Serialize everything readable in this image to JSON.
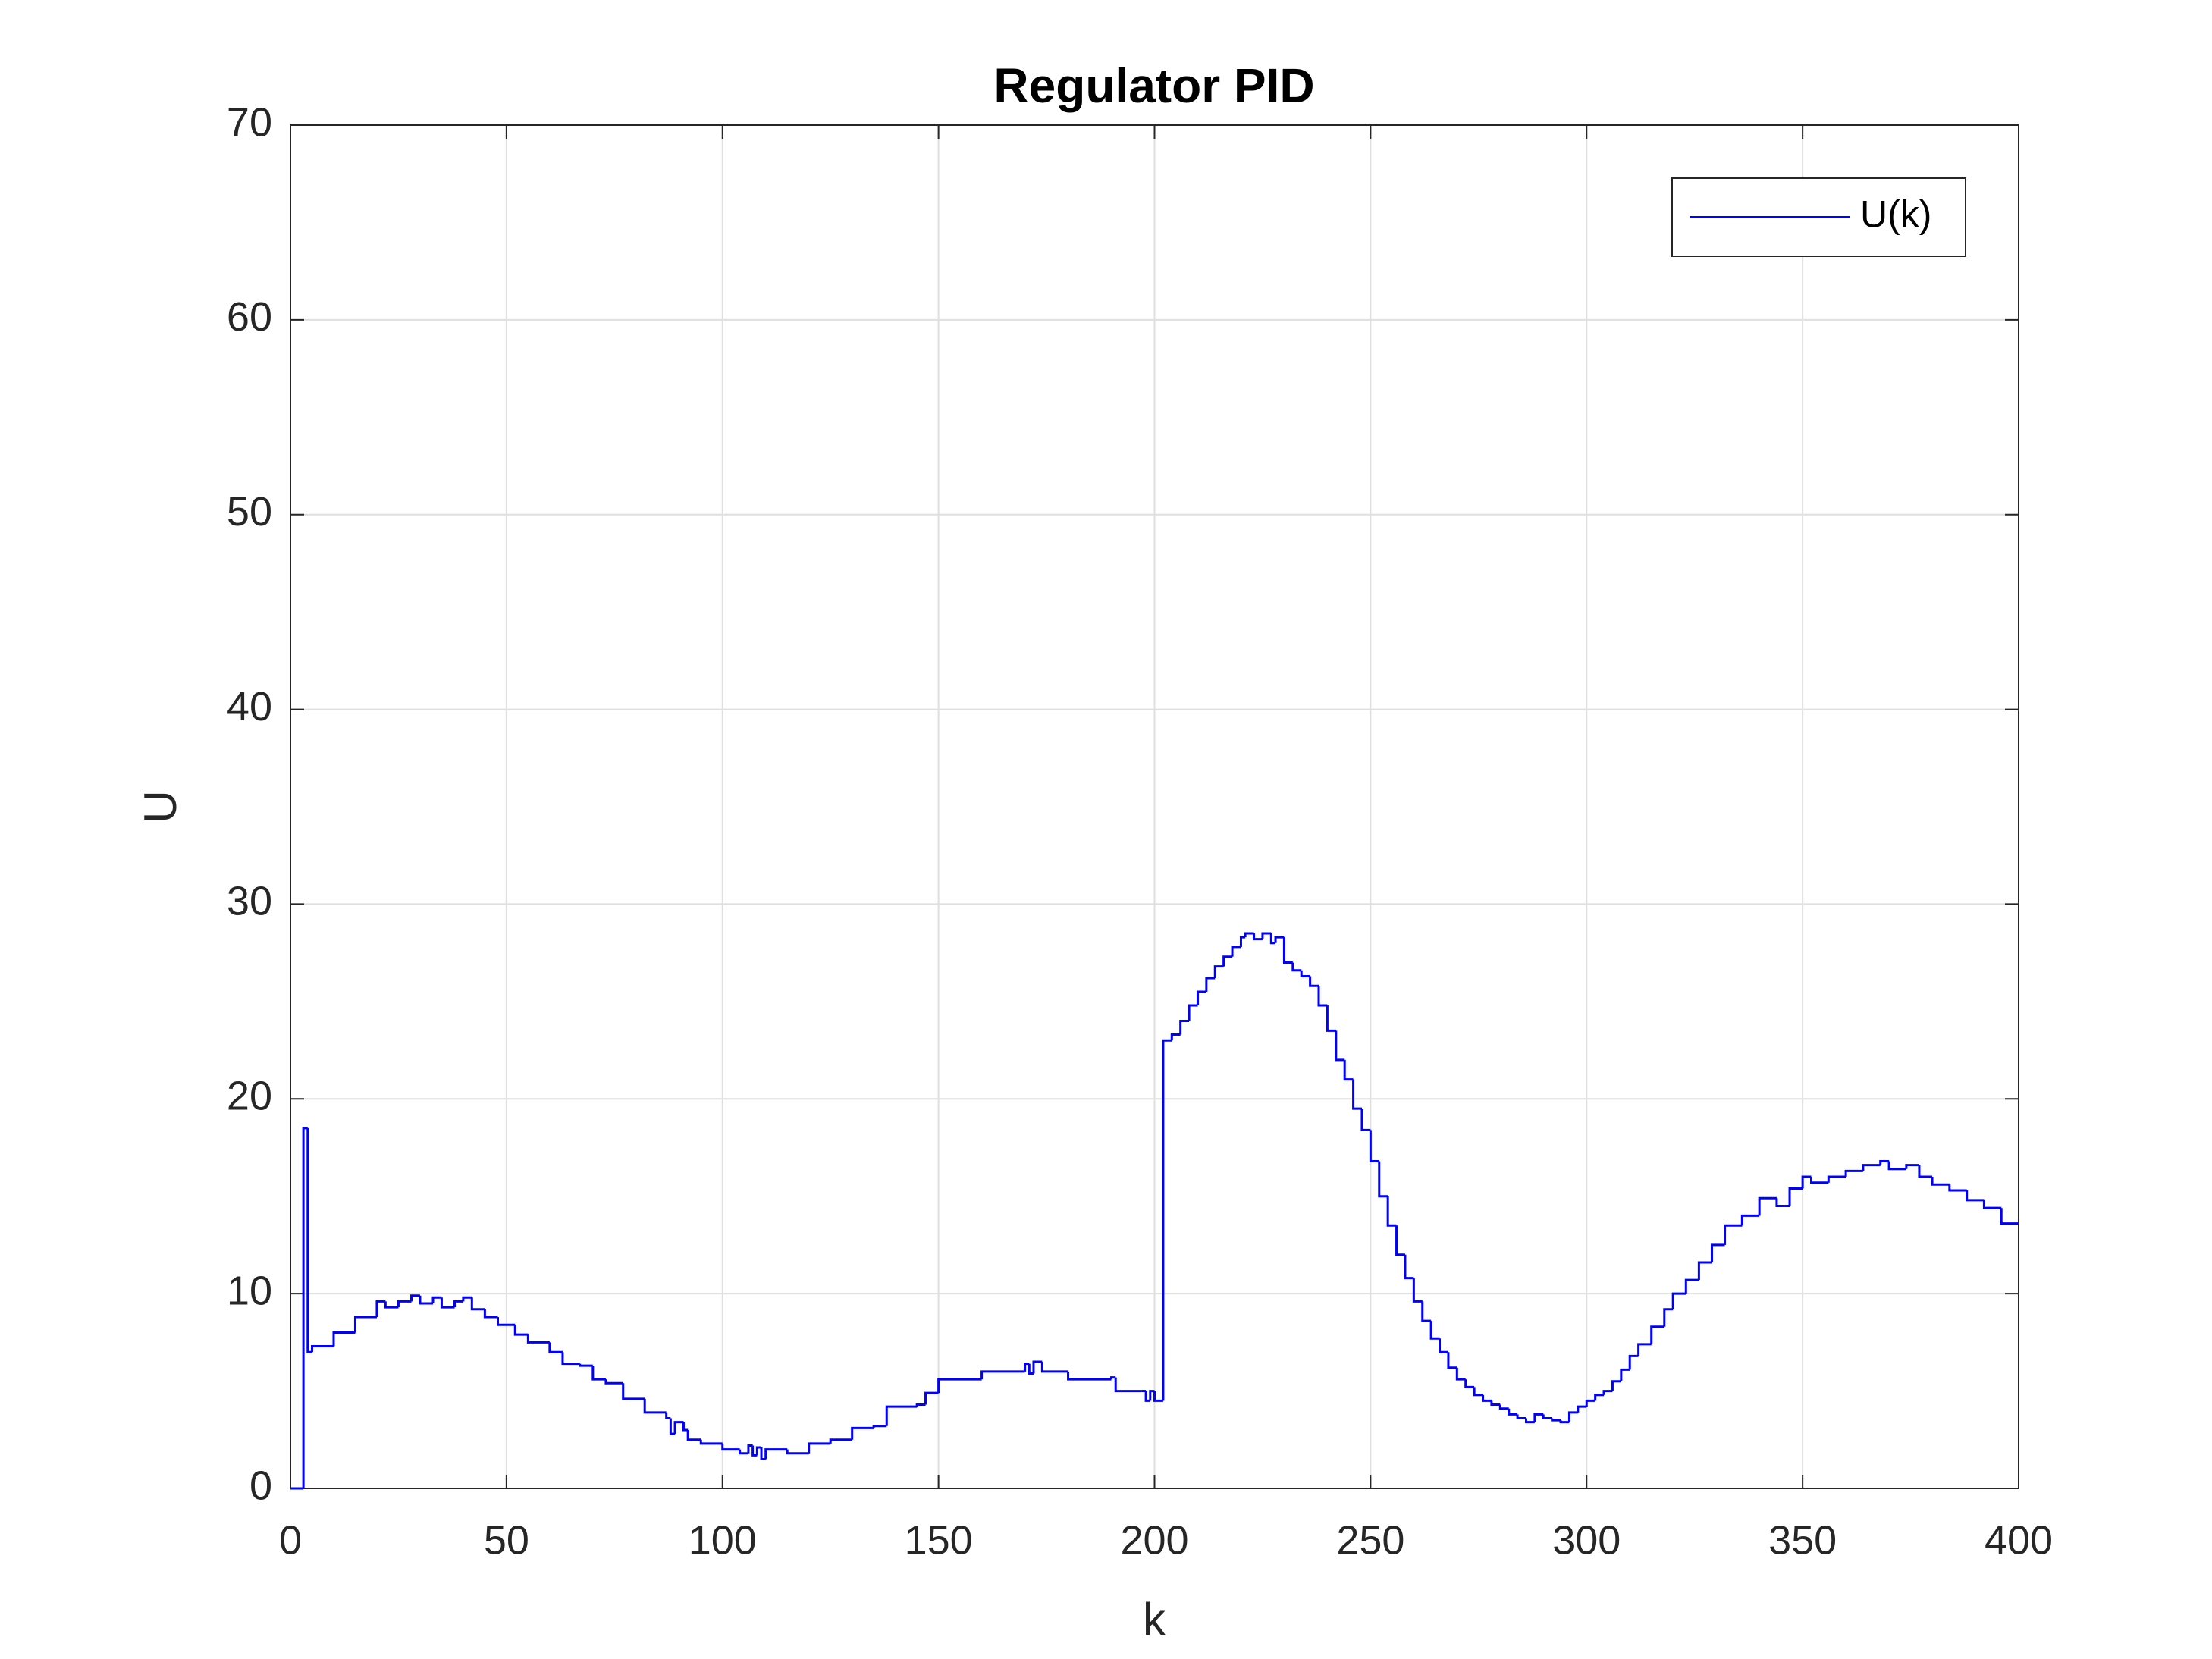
{
  "chart_data": {
    "type": "line",
    "drawstyle": "steps-post",
    "title": "Regulator PID",
    "x_label": "k",
    "y_label": "U",
    "xlim": [
      0,
      400
    ],
    "xticks": [
      0,
      50,
      100,
      150,
      200,
      250,
      300,
      350,
      400
    ],
    "ylim": [
      0,
      70
    ],
    "yticks": [
      0,
      10,
      20,
      30,
      40,
      50,
      60,
      70
    ],
    "grid": true,
    "legend": "upper right",
    "x": [
      0,
      3,
      4,
      5,
      10,
      15,
      20,
      22,
      25,
      28,
      30,
      33,
      35,
      38,
      40,
      42,
      45,
      48,
      52,
      55,
      60,
      63,
      67,
      70,
      73,
      77,
      82,
      87,
      88,
      89,
      91,
      92,
      95,
      100,
      104,
      106,
      107,
      108,
      109,
      110,
      115,
      120,
      125,
      130,
      135,
      138,
      145,
      147,
      150,
      160,
      170,
      171,
      172,
      174,
      180,
      190,
      191,
      197,
      198,
      199,
      200,
      202,
      204,
      206,
      208,
      210,
      212,
      214,
      216,
      218,
      220,
      221,
      223,
      225,
      227,
      228,
      230,
      232,
      234,
      236,
      238,
      240,
      242,
      244,
      246,
      248,
      250,
      252,
      254,
      256,
      258,
      260,
      262,
      264,
      266,
      268,
      270,
      272,
      274,
      276,
      278,
      280,
      282,
      284,
      286,
      288,
      290,
      292,
      294,
      296,
      298,
      300,
      302,
      304,
      306,
      308,
      310,
      312,
      315,
      318,
      320,
      323,
      326,
      329,
      332,
      336,
      340,
      344,
      347,
      350,
      352,
      356,
      360,
      364,
      368,
      370,
      374,
      377,
      380,
      384,
      388,
      392,
      396,
      400
    ],
    "series": [
      {
        "name": "U(k)",
        "color": "#0000ff",
        "values": [
          0,
          18.5,
          7,
          7.3,
          8,
          8.8,
          9.6,
          9.3,
          9.6,
          9.9,
          9.5,
          9.8,
          9.3,
          9.6,
          9.8,
          9.2,
          8.8,
          8.4,
          7.9,
          7.5,
          7,
          6.4,
          6.3,
          5.6,
          5.4,
          4.6,
          3.9,
          3.6,
          2.8,
          3.4,
          3,
          2.5,
          2.3,
          2,
          1.8,
          2.2,
          1.7,
          2.1,
          1.5,
          2,
          1.8,
          2.3,
          2.5,
          3.1,
          3.2,
          4.2,
          4.3,
          4.9,
          5.6,
          6,
          6.4,
          5.9,
          6.5,
          6,
          5.6,
          5.7,
          5,
          5,
          4.5,
          5,
          4.5,
          23,
          23.3,
          24,
          24.8,
          25.5,
          26.2,
          26.8,
          27.3,
          27.8,
          28.3,
          28.5,
          28.2,
          28.5,
          28,
          28.3,
          27,
          26.6,
          26.3,
          25.8,
          24.8,
          23.5,
          22,
          21,
          19.5,
          18.4,
          16.8,
          15,
          13.5,
          12,
          10.8,
          9.6,
          8.6,
          7.7,
          7,
          6.2,
          5.6,
          5.2,
          4.8,
          4.5,
          4.3,
          4.1,
          3.8,
          3.6,
          3.4,
          3.8,
          3.6,
          3.5,
          3.4,
          3.9,
          4.2,
          4.5,
          4.8,
          5,
          5.5,
          6.1,
          6.8,
          7.4,
          8.3,
          9.2,
          10,
          10.7,
          11.6,
          12.5,
          13.5,
          14,
          14.9,
          14.5,
          15.4,
          16,
          15.7,
          16,
          16.3,
          16.6,
          16.8,
          16.4,
          16.6,
          16,
          15.6,
          15.3,
          14.8,
          14.4,
          13.6,
          13.6
        ]
      }
    ]
  }
}
